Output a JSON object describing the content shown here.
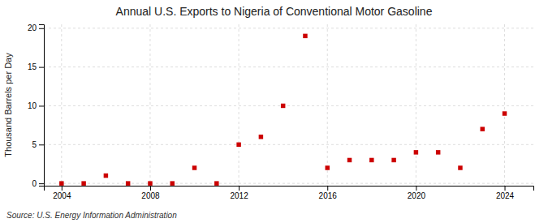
{
  "chart_data": {
    "type": "scatter",
    "title": "Annual U.S. Exports to Nigeria of Conventional Motor Gasoline",
    "ylabel": "Thousand Barrels per Day",
    "annotations": [
      "Source: U.S. Energy Information Administration"
    ],
    "x": [
      2004,
      2005,
      2006,
      2007,
      2008,
      2009,
      2010,
      2011,
      2012,
      2013,
      2014,
      2015,
      2016,
      2017,
      2018,
      2019,
      2020,
      2021,
      2022,
      2023,
      2024
    ],
    "values": [
      0.0,
      0.0,
      1.0,
      0.0,
      0.0,
      0.0,
      2.0,
      0.0,
      5.0,
      6.0,
      10.0,
      19.0,
      2.0,
      3.0,
      3.0,
      3.0,
      4.0,
      4.0,
      2.0,
      7.0,
      9.0
    ],
    "color": "#cc0000",
    "marker": "square",
    "xlim": [
      2003.2,
      2025.3
    ],
    "xticks": [
      2004,
      2008,
      2012,
      2016,
      2020,
      2024
    ],
    "ylim": [
      -0.3,
      20.5
    ],
    "yticks": [
      0,
      5,
      10,
      15,
      20
    ],
    "grid": true
  }
}
